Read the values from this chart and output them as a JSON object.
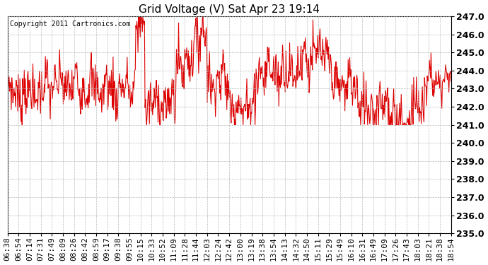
{
  "title": "Grid Voltage (V) Sat Apr 23 19:14",
  "copyright": "Copyright 2011 Cartronics.com",
  "line_color": "#dd0000",
  "background_color": "#ffffff",
  "plot_bg_color": "#ffffff",
  "grid_color": "#bbbbbb",
  "ylim": [
    235.0,
    247.0
  ],
  "yticks": [
    235.0,
    236.0,
    237.0,
    238.0,
    239.0,
    240.0,
    241.0,
    242.0,
    243.0,
    244.0,
    245.0,
    246.0,
    247.0
  ],
  "xtick_labels": [
    "06:38",
    "06:54",
    "07:14",
    "07:31",
    "07:49",
    "08:09",
    "08:26",
    "08:42",
    "08:59",
    "09:17",
    "09:38",
    "09:55",
    "10:15",
    "10:33",
    "10:52",
    "11:09",
    "11:28",
    "11:44",
    "12:03",
    "12:24",
    "12:42",
    "13:00",
    "13:19",
    "13:38",
    "13:54",
    "14:13",
    "14:32",
    "14:50",
    "15:11",
    "15:29",
    "15:49",
    "16:10",
    "16:31",
    "16:49",
    "17:09",
    "17:26",
    "17:43",
    "18:03",
    "18:21",
    "18:38",
    "18:54"
  ],
  "title_fontsize": 11,
  "copyright_fontsize": 7,
  "tick_fontsize": 8,
  "ytick_fontsize": 9
}
